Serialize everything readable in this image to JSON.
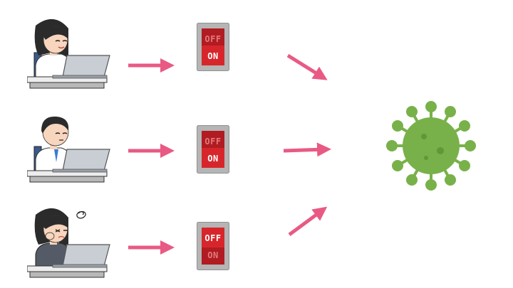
{
  "rows": [
    {
      "worker": "office-worker-woman-laptop",
      "switch": {
        "active": "ON",
        "off_label": "OFF",
        "on_label": "ON"
      }
    },
    {
      "worker": "office-worker-man-laptop",
      "switch": {
        "active": "ON",
        "off_label": "OFF",
        "on_label": "ON"
      }
    },
    {
      "worker": "tired-office-worker-laptop",
      "switch": {
        "active": "OFF",
        "off_label": "OFF",
        "on_label": "ON"
      }
    }
  ],
  "target": "virus-icon",
  "colors": {
    "arrow": "#e85a84",
    "switch_active_bg": "#d7262b",
    "switch_inactive_bg": "#b01c22",
    "switch_frame": "#8f8f8f",
    "switch_active_text": "#ffffff",
    "switch_inactive_text": "#e27a7a",
    "virus": "#78b14a",
    "virus_dark": "#5e9838"
  }
}
